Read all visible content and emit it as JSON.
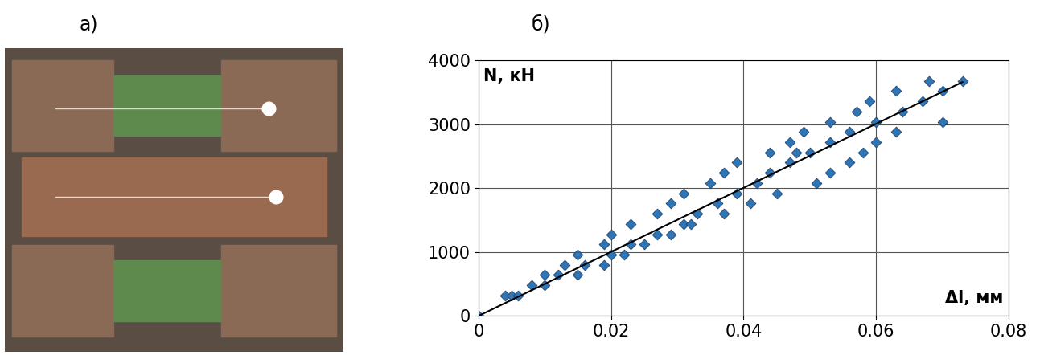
{
  "photo": {
    "label": "а)"
  },
  "chart_data": {
    "type": "scatter",
    "title": "б)",
    "x_label": "Δl, мм",
    "y_label": "N, кН",
    "xlim": [
      0,
      0.08
    ],
    "xticks": [
      0,
      0.02,
      0.04,
      0.06,
      0.08
    ],
    "ylim": [
      0,
      4000
    ],
    "yticks": [
      0,
      1000,
      2000,
      3000,
      4000
    ],
    "grid": true,
    "series": [
      {
        "type": "scatter",
        "color": "#2e75b6",
        "marker": "diamond",
        "x": [
          0,
          0.004,
          0.005,
          0.006,
          0.008,
          0.01,
          0.01,
          0.012,
          0.013,
          0.015,
          0.015,
          0.016,
          0.019,
          0.019,
          0.02,
          0.02,
          0.022,
          0.023,
          0.023,
          0.025,
          0.027,
          0.027,
          0.029,
          0.029,
          0.031,
          0.031,
          0.032,
          0.033,
          0.035,
          0.036,
          0.037,
          0.037,
          0.039,
          0.039,
          0.041,
          0.042,
          0.044,
          0.044,
          0.045,
          0.047,
          0.047,
          0.048,
          0.049,
          0.05,
          0.051,
          0.053,
          0.053,
          0.053,
          0.056,
          0.056,
          0.057,
          0.058,
          0.059,
          0.06,
          0.06,
          0.063,
          0.063,
          0.064,
          0.067,
          0.068,
          0.07,
          0.07,
          0.073
        ],
        "values": [
          0,
          320,
          320,
          320,
          480,
          480,
          640,
          640,
          800,
          640,
          960,
          800,
          800,
          1120,
          960,
          1280,
          960,
          1120,
          1440,
          1120,
          1280,
          1600,
          1280,
          1760,
          1440,
          1920,
          1440,
          1600,
          2080,
          1760,
          1600,
          2240,
          2400,
          1920,
          1760,
          2080,
          2240,
          2560,
          1920,
          2400,
          2720,
          2560,
          2880,
          2560,
          2080,
          2240,
          2720,
          3040,
          2400,
          2880,
          3200,
          2560,
          3360,
          2720,
          3040,
          2880,
          3520,
          3200,
          3360,
          3680,
          3040,
          3520,
          3680
        ]
      },
      {
        "type": "line",
        "color": "#000000",
        "line_style": "solid",
        "x": [
          0,
          0.073
        ],
        "values": [
          0,
          3660
        ]
      }
    ]
  }
}
